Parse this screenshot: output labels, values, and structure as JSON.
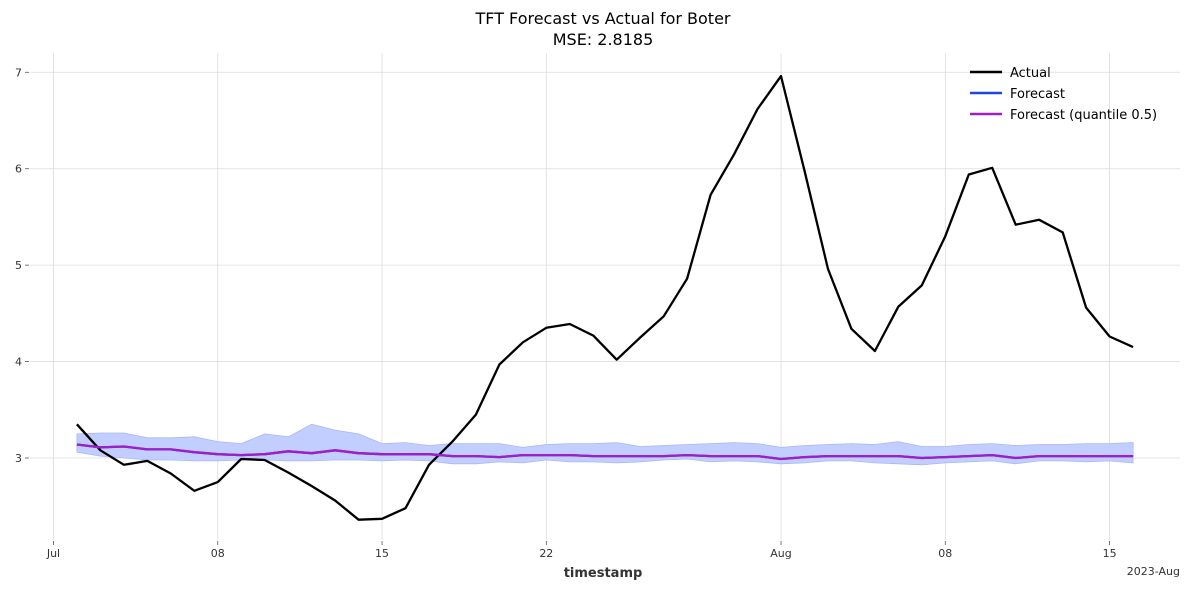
{
  "chart_data": {
    "type": "line",
    "title": "TFT Forecast vs Actual for Boter",
    "subtitle": "MSE: 2.8185",
    "xlabel": "timestamp",
    "ylabel": "",
    "x_start": "2023-07-02",
    "x_tick_labels": [
      "Jul",
      "08",
      "15",
      "22",
      "Aug",
      "08",
      "15"
    ],
    "x_tick_dates": [
      "2023-07-01",
      "2023-07-08",
      "2023-07-15",
      "2023-07-22",
      "2023-08-01",
      "2023-08-08",
      "2023-08-15"
    ],
    "x_offset_label": "2023-Aug",
    "xlim": [
      "2023-06-30",
      "2023-08-18"
    ],
    "ylim": [
      2.15,
      7.2
    ],
    "y_ticks": [
      3,
      4,
      5,
      6,
      7
    ],
    "grid": true,
    "legend_position": "top-right",
    "band": {
      "name": "Forecast",
      "color": "#bfcbff",
      "upper": [
        3.25,
        3.26,
        3.26,
        3.21,
        3.21,
        3.22,
        3.17,
        3.15,
        3.25,
        3.22,
        3.35,
        3.29,
        3.25,
        3.15,
        3.16,
        3.13,
        3.15,
        3.15,
        3.15,
        3.11,
        3.14,
        3.15,
        3.15,
        3.16,
        3.12,
        3.13,
        3.14,
        3.15,
        3.16,
        3.15,
        3.11,
        3.13,
        3.14,
        3.15,
        3.14,
        3.17,
        3.12,
        3.12,
        3.14,
        3.15,
        3.13,
        3.14,
        3.14,
        3.15,
        3.15,
        3.16
      ],
      "lower": [
        3.06,
        3.02,
        3.0,
        2.98,
        2.98,
        2.97,
        2.97,
        2.98,
        2.98,
        2.97,
        2.97,
        2.98,
        2.98,
        2.97,
        2.98,
        2.97,
        2.94,
        2.94,
        2.96,
        2.95,
        2.98,
        2.96,
        2.96,
        2.95,
        2.96,
        2.98,
        2.99,
        2.96,
        2.97,
        2.96,
        2.94,
        2.95,
        2.97,
        2.97,
        2.95,
        2.94,
        2.93,
        2.95,
        2.96,
        2.97,
        2.94,
        2.97,
        2.97,
        2.96,
        2.97,
        2.95
      ]
    },
    "series": [
      {
        "name": "Actual",
        "color": "#000000",
        "values": [
          3.35,
          3.08,
          2.93,
          2.97,
          2.84,
          2.66,
          2.75,
          2.99,
          2.98,
          2.85,
          2.71,
          2.56,
          2.36,
          2.37,
          2.48,
          2.93,
          3.17,
          3.45,
          3.97,
          4.2,
          4.35,
          4.39,
          4.27,
          4.02,
          4.25,
          4.47,
          4.86,
          5.73,
          6.15,
          6.62,
          6.96,
          5.98,
          4.96,
          4.34,
          4.11,
          4.57,
          4.79,
          5.3,
          5.94,
          6.01,
          5.42,
          5.47,
          5.34,
          4.56,
          4.26,
          4.15
        ]
      },
      {
        "name": "Forecast",
        "color": "#1f44e6",
        "values": [
          3.14,
          3.11,
          3.12,
          3.09,
          3.09,
          3.06,
          3.04,
          3.03,
          3.04,
          3.07,
          3.05,
          3.08,
          3.05,
          3.04,
          3.04,
          3.04,
          3.02,
          3.02,
          3.01,
          3.03,
          3.03,
          3.03,
          3.02,
          3.02,
          3.02,
          3.02,
          3.03,
          3.02,
          3.02,
          3.02,
          2.99,
          3.01,
          3.02,
          3.02,
          3.02,
          3.02,
          3.0,
          3.01,
          3.02,
          3.03,
          3.0,
          3.02,
          3.02,
          3.02,
          3.02,
          3.02
        ]
      },
      {
        "name": "Forecast (quantile 0.5)",
        "color": "#a11ec4",
        "values": [
          3.14,
          3.11,
          3.12,
          3.09,
          3.09,
          3.06,
          3.04,
          3.03,
          3.04,
          3.07,
          3.05,
          3.08,
          3.05,
          3.04,
          3.04,
          3.04,
          3.02,
          3.02,
          3.01,
          3.03,
          3.03,
          3.03,
          3.02,
          3.02,
          3.02,
          3.02,
          3.03,
          3.02,
          3.02,
          3.02,
          2.99,
          3.01,
          3.02,
          3.02,
          3.02,
          3.02,
          3.0,
          3.01,
          3.02,
          3.03,
          3.0,
          3.02,
          3.02,
          3.02,
          3.02,
          3.02
        ]
      }
    ]
  }
}
